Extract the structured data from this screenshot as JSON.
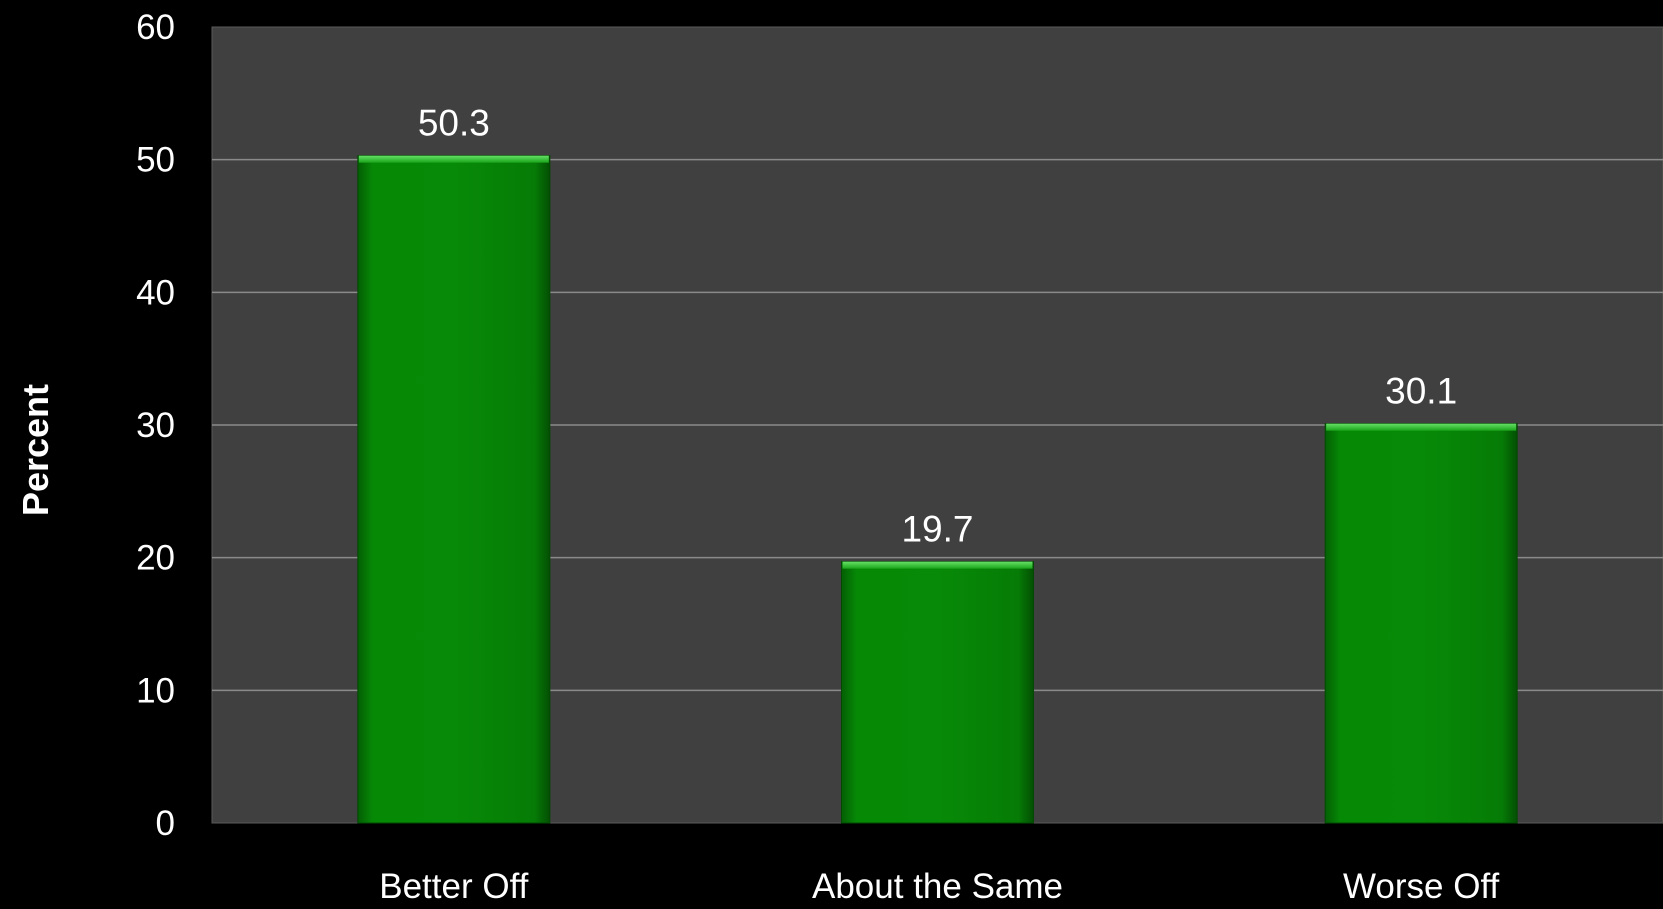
{
  "chart_data": {
    "type": "bar",
    "categories": [
      "Better Off",
      "About the Same",
      "Worse Off"
    ],
    "values": [
      50.3,
      19.7,
      30.1
    ],
    "data_labels": [
      "50.3",
      "19.7",
      "30.1"
    ],
    "title": "",
    "xlabel": "",
    "ylabel": "Percent",
    "ylim": [
      0,
      60
    ],
    "yticks": [
      0,
      10,
      20,
      30,
      40,
      50,
      60
    ],
    "grid": true,
    "legend": "none"
  },
  "colors": {
    "page_background": "#000000",
    "plot_background": "#404040",
    "gridline": "#8a8a8a",
    "bar_fill": "#058705",
    "bar_highlight": "#3fcf3f",
    "text": "#ffffff"
  }
}
